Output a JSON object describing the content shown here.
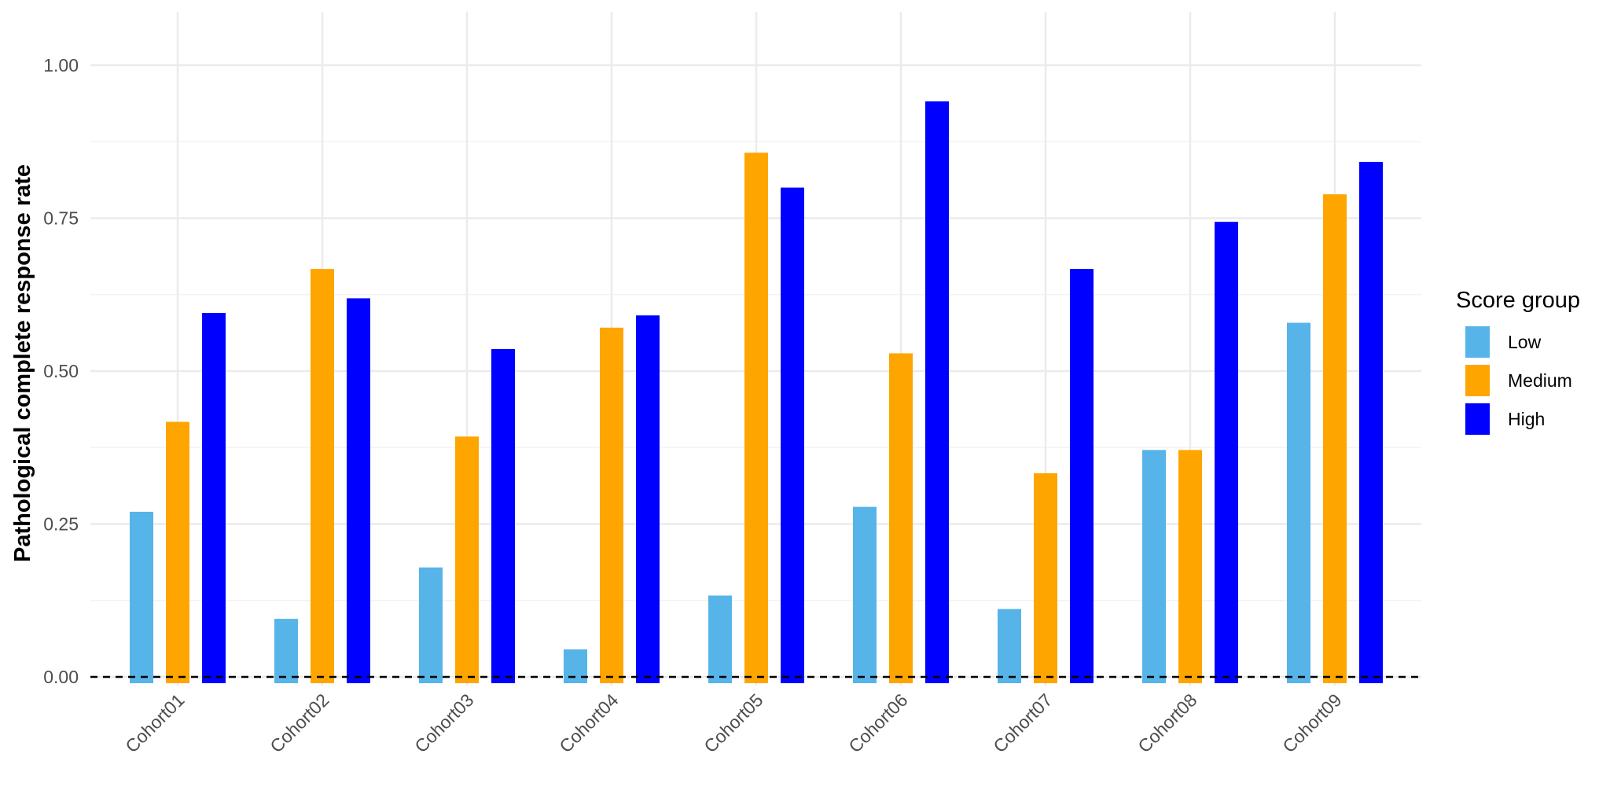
{
  "chart_data": {
    "type": "bar",
    "title": "",
    "xlabel": "",
    "ylabel": "Pathological complete response rate",
    "categories": [
      "Cohort01",
      "Cohort02",
      "Cohort03",
      "Cohort04",
      "Cohort05",
      "Cohort06",
      "Cohort07",
      "Cohort08",
      "Cohort09"
    ],
    "series": [
      {
        "name": "Low",
        "color": "#56B4E9",
        "values": [
          0.27,
          0.095,
          0.179,
          0.045,
          0.133,
          0.278,
          0.111,
          0.371,
          0.579
        ]
      },
      {
        "name": "Medium",
        "color": "#FFA500",
        "values": [
          0.417,
          0.667,
          0.393,
          0.571,
          0.857,
          0.529,
          0.333,
          0.371,
          0.789
        ]
      },
      {
        "name": "High",
        "color": "#0000FF",
        "values": [
          0.595,
          0.619,
          0.536,
          0.591,
          0.8,
          0.941,
          0.667,
          0.744,
          0.842
        ]
      }
    ],
    "ylim": [
      0,
      1.05
    ],
    "yticks": [
      "0.00",
      "0.25",
      "0.50",
      "0.75",
      "1.00"
    ],
    "reference_line": {
      "y": 0,
      "style": "dashed"
    },
    "grid": true,
    "legend": {
      "title": "Score group",
      "position": "right"
    }
  }
}
